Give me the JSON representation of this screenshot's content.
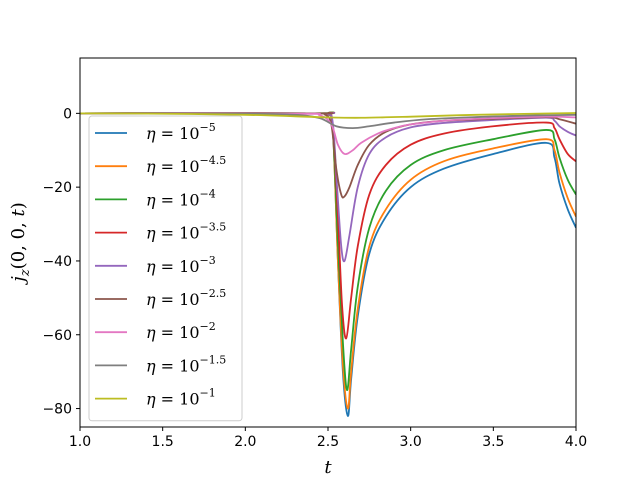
{
  "chart_data": {
    "type": "line",
    "xlabel": "t",
    "ylabel": "j_z(0, 0, t)",
    "xlim": [
      1.0,
      4.0
    ],
    "ylim": [
      -85,
      15
    ],
    "xticks": [
      1.0,
      1.5,
      2.0,
      2.5,
      3.0,
      3.5,
      4.0
    ],
    "xtick_labels": [
      "1.0",
      "1.5",
      "2.0",
      "2.5",
      "3.0",
      "3.5",
      "4.0"
    ],
    "yticks": [
      0,
      -20,
      -40,
      -60,
      -80
    ],
    "ytick_labels": [
      "0",
      "−20",
      "−40",
      "−60",
      "−80"
    ],
    "legend_position": "left",
    "grid": false,
    "series": [
      {
        "name": "η = 10^−5",
        "eta_exponent": "−5",
        "color": "#1f77b4",
        "x": [
          1.0,
          2.4,
          2.5,
          2.53,
          2.56,
          2.59,
          2.62,
          2.64,
          2.68,
          2.75,
          2.85,
          3.0,
          3.2,
          3.5,
          3.82,
          3.87,
          3.9,
          3.95,
          4.0
        ],
        "y": [
          0,
          0,
          -0.2,
          -5,
          -40,
          -70,
          -82,
          -72,
          -55,
          -38,
          -28,
          -20,
          -15,
          -11,
          -8,
          -12,
          -19,
          -26,
          -31
        ]
      },
      {
        "name": "η = 10^−4.5",
        "eta_exponent": "−4.5",
        "color": "#ff7f0e",
        "x": [
          1.0,
          2.4,
          2.5,
          2.53,
          2.56,
          2.59,
          2.62,
          2.64,
          2.68,
          2.75,
          2.85,
          3.0,
          3.2,
          3.5,
          3.82,
          3.87,
          3.9,
          3.95,
          4.0
        ],
        "y": [
          0,
          0,
          -0.2,
          -5,
          -40,
          -68,
          -80,
          -70,
          -53,
          -36,
          -26,
          -18,
          -13,
          -9.5,
          -7,
          -10,
          -16,
          -23,
          -28
        ]
      },
      {
        "name": "η = 10^−4",
        "eta_exponent": "−4",
        "color": "#2ca02c",
        "x": [
          1.0,
          2.4,
          2.5,
          2.53,
          2.56,
          2.59,
          2.615,
          2.64,
          2.68,
          2.75,
          2.85,
          3.0,
          3.2,
          3.5,
          3.82,
          3.87,
          3.9,
          3.95,
          4.0
        ],
        "y": [
          0,
          0,
          -0.2,
          -5,
          -35,
          -62,
          -75,
          -64,
          -47,
          -31,
          -21,
          -14,
          -10,
          -7,
          -4.5,
          -7,
          -12,
          -18,
          -22
        ]
      },
      {
        "name": "η = 10^−3.5",
        "eta_exponent": "−3.5",
        "color": "#d62728",
        "x": [
          1.0,
          2.4,
          2.5,
          2.53,
          2.56,
          2.585,
          2.61,
          2.64,
          2.68,
          2.75,
          2.85,
          3.0,
          3.2,
          3.5,
          3.82,
          3.87,
          3.9,
          3.95,
          4.0
        ],
        "y": [
          0,
          0,
          -0.2,
          -4,
          -28,
          -52,
          -61,
          -50,
          -36,
          -22,
          -14,
          -8.5,
          -5.5,
          -3.5,
          -2.5,
          -4,
          -7,
          -11,
          -13
        ]
      },
      {
        "name": "η = 10^−3",
        "eta_exponent": "−3",
        "color": "#9467bd",
        "x": [
          1.0,
          2.4,
          2.5,
          2.53,
          2.555,
          2.58,
          2.6,
          2.63,
          2.68,
          2.75,
          2.85,
          3.0,
          3.2,
          3.5,
          3.82,
          3.87,
          3.9,
          3.95,
          4.0
        ],
        "y": [
          0,
          0,
          -0.2,
          -3,
          -20,
          -36,
          -40,
          -33,
          -20,
          -11,
          -6.5,
          -3.8,
          -2.6,
          -1.8,
          -1.2,
          -2,
          -3.5,
          -5,
          -6
        ]
      },
      {
        "name": "η = 10^−2.5",
        "eta_exponent": "−2.5",
        "color": "#8c564b",
        "x": [
          1.0,
          2.4,
          2.48,
          2.52,
          2.55,
          2.58,
          2.6,
          2.63,
          2.68,
          2.75,
          2.85,
          3.0,
          3.2,
          3.5,
          3.82,
          3.9,
          4.0
        ],
        "y": [
          0,
          0,
          -0.3,
          -3,
          -15,
          -22,
          -22.5,
          -20,
          -14,
          -8.5,
          -5,
          -3,
          -2,
          -1.5,
          -1,
          -1.6,
          -2.8
        ]
      },
      {
        "name": "η = 10^−2",
        "eta_exponent": "−2",
        "color": "#e377c2",
        "x": [
          1.0,
          2.3,
          2.45,
          2.52,
          2.56,
          2.6,
          2.65,
          2.7,
          2.8,
          2.9,
          3.0,
          3.2,
          3.5,
          3.8,
          4.0
        ],
        "y": [
          0,
          -0.1,
          -0.5,
          -3,
          -8.5,
          -11,
          -10,
          -8,
          -5.5,
          -4,
          -3,
          -2,
          -1.3,
          -0.9,
          -1.1
        ]
      },
      {
        "name": "η = 10^−1.5",
        "eta_exponent": "−1.5",
        "color": "#7f7f7f",
        "x": [
          1.0,
          2.0,
          2.3,
          2.45,
          2.55,
          2.65,
          2.75,
          2.9,
          3.1,
          3.4,
          3.7,
          4.0
        ],
        "y": [
          0,
          -0.1,
          -0.4,
          -1.3,
          -3.5,
          -4,
          -3.5,
          -2.5,
          -1.6,
          -1,
          -0.6,
          -0.4
        ]
      },
      {
        "name": "η = 10^−1",
        "eta_exponent": "−1",
        "color": "#bcbd22",
        "x": [
          1.0,
          1.5,
          2.0,
          2.3,
          2.5,
          2.7,
          3.0,
          3.3,
          3.6,
          4.0
        ],
        "y": [
          0,
          -0.1,
          -0.4,
          -0.8,
          -1.1,
          -1.2,
          -0.9,
          -0.5,
          -0.2,
          0.1
        ]
      }
    ]
  }
}
